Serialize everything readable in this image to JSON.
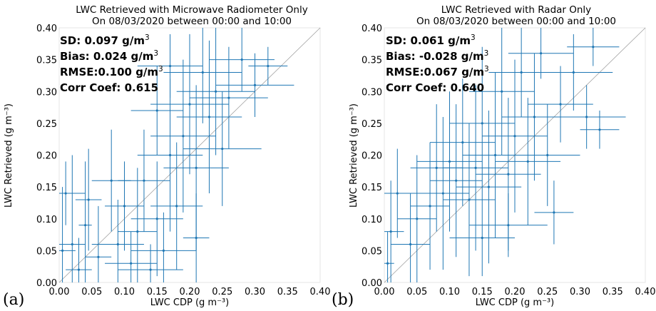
{
  "chart_data": [
    {
      "type": "scatter",
      "panel_label": "(a)",
      "title": "LWC Retrieved with Microwave Radiometer Only",
      "subtitle": "On 08/03/2020 between 00:00 and 10:00",
      "xlabel": "LWC CDP (g m⁻³)",
      "ylabel": "LWC Retrieved (g m⁻³)",
      "xlim": [
        0,
        0.4
      ],
      "ylim": [
        0,
        0.4
      ],
      "x_ticks": [
        "0.00",
        "0.05",
        "0.10",
        "0.15",
        "0.20",
        "0.25",
        "0.30",
        "0.35",
        "0.40"
      ],
      "y_ticks": [
        "0.00",
        "0.05",
        "0.10",
        "0.15",
        "0.20",
        "0.25",
        "0.30",
        "0.35",
        "0.40"
      ],
      "reference_line": "1:1",
      "stats": [
        {
          "label": "SD: 0.097 g/m",
          "sup": "3"
        },
        {
          "label": "Bias: 0.024 g/m",
          "sup": "3"
        },
        {
          "label": "RMSE:0.100 g/m",
          "sup": "3"
        },
        {
          "label": "Corr Coef: 0.615",
          "sup": ""
        }
      ],
      "points": [
        {
          "x": 0.005,
          "y": 0.05,
          "xerr": 0.02,
          "yerr": 0.1
        },
        {
          "x": 0.01,
          "y": 0.14,
          "xerr": 0.03,
          "yerr": 0.05
        },
        {
          "x": 0.02,
          "y": 0.06,
          "xerr": 0.02,
          "yerr": 0.14
        },
        {
          "x": 0.03,
          "y": 0.02,
          "xerr": 0.02,
          "yerr": 0.05
        },
        {
          "x": 0.04,
          "y": 0.09,
          "xerr": 0.01,
          "yerr": 0.1
        },
        {
          "x": 0.045,
          "y": 0.13,
          "xerr": 0.02,
          "yerr": 0.08
        },
        {
          "x": 0.06,
          "y": 0.04,
          "xerr": 0.02,
          "yerr": 0.08
        },
        {
          "x": 0.08,
          "y": 0.16,
          "xerr": 0.03,
          "yerr": 0.08
        },
        {
          "x": 0.09,
          "y": 0.06,
          "xerr": 0.04,
          "yerr": 0.07
        },
        {
          "x": 0.1,
          "y": 0.12,
          "xerr": 0.03,
          "yerr": 0.07
        },
        {
          "x": 0.11,
          "y": 0.03,
          "xerr": 0.04,
          "yerr": 0.05
        },
        {
          "x": 0.12,
          "y": 0.08,
          "xerr": 0.03,
          "yerr": 0.1
        },
        {
          "x": 0.13,
          "y": 0.16,
          "xerr": 0.04,
          "yerr": 0.08
        },
        {
          "x": 0.14,
          "y": 0.02,
          "xerr": 0.05,
          "yerr": 0.04
        },
        {
          "x": 0.15,
          "y": 0.1,
          "xerr": 0.04,
          "yerr": 0.09
        },
        {
          "x": 0.16,
          "y": 0.05,
          "xerr": 0.05,
          "yerr": 0.06
        },
        {
          "x": 0.17,
          "y": 0.2,
          "xerr": 0.05,
          "yerr": 0.12
        },
        {
          "x": 0.18,
          "y": 0.12,
          "xerr": 0.04,
          "yerr": 0.1
        },
        {
          "x": 0.19,
          "y": 0.23,
          "xerr": 0.05,
          "yerr": 0.12
        },
        {
          "x": 0.2,
          "y": 0.28,
          "xerr": 0.06,
          "yerr": 0.11
        },
        {
          "x": 0.21,
          "y": 0.18,
          "xerr": 0.05,
          "yerr": 0.13
        },
        {
          "x": 0.22,
          "y": 0.33,
          "xerr": 0.06,
          "yerr": 0.08
        },
        {
          "x": 0.23,
          "y": 0.26,
          "xerr": 0.05,
          "yerr": 0.12
        },
        {
          "x": 0.24,
          "y": 0.3,
          "xerr": 0.06,
          "yerr": 0.1
        },
        {
          "x": 0.26,
          "y": 0.29,
          "xerr": 0.06,
          "yerr": 0.08
        },
        {
          "x": 0.28,
          "y": 0.35,
          "xerr": 0.05,
          "yerr": 0.05
        },
        {
          "x": 0.3,
          "y": 0.31,
          "xerr": 0.06,
          "yerr": 0.05
        },
        {
          "x": 0.32,
          "y": 0.34,
          "xerr": 0.03,
          "yerr": 0.03
        },
        {
          "x": 0.25,
          "y": 0.21,
          "xerr": 0.06,
          "yerr": 0.09
        },
        {
          "x": 0.15,
          "y": 0.27,
          "xerr": 0.04,
          "yerr": 0.07
        },
        {
          "x": 0.17,
          "y": 0.34,
          "xerr": 0.05,
          "yerr": 0.05
        },
        {
          "x": 0.21,
          "y": 0.07,
          "xerr": 0.02,
          "yerr": 0.07
        }
      ]
    },
    {
      "type": "scatter",
      "panel_label": "(b)",
      "title": "LWC Retrieved with Radar Only",
      "subtitle": "On 08/03/2020 between 00:00 and 10:00",
      "xlabel": "LWC CDP (g m⁻³)",
      "ylabel": "LWC Retrieved (g m⁻³)",
      "xlim": [
        0,
        0.4
      ],
      "ylim": [
        0,
        0.4
      ],
      "x_ticks": [
        "0.00",
        "0.05",
        "0.10",
        "0.15",
        "0.20",
        "0.25",
        "0.30",
        "0.35",
        "0.40"
      ],
      "y_ticks": [
        "0.00",
        "0.05",
        "0.10",
        "0.15",
        "0.20",
        "0.25",
        "0.30",
        "0.35",
        "0.40"
      ],
      "reference_line": "1:1",
      "stats": [
        {
          "label": "SD: 0.061 g/m",
          "sup": "3"
        },
        {
          "label": "Bias: -0.028 g/m",
          "sup": "3"
        },
        {
          "label": "RMSE:0.067 g/m",
          "sup": "3"
        },
        {
          "label": "Corr Coef: 0.640",
          "sup": ""
        }
      ],
      "points": [
        {
          "x": 0.005,
          "y": 0.03,
          "xerr": 0.01,
          "yerr": 0.05
        },
        {
          "x": 0.01,
          "y": 0.08,
          "xerr": 0.02,
          "yerr": 0.08
        },
        {
          "x": 0.02,
          "y": 0.14,
          "xerr": 0.03,
          "yerr": 0.07
        },
        {
          "x": 0.04,
          "y": 0.06,
          "xerr": 0.03,
          "yerr": 0.08
        },
        {
          "x": 0.05,
          "y": 0.1,
          "xerr": 0.03,
          "yerr": 0.1
        },
        {
          "x": 0.07,
          "y": 0.12,
          "xerr": 0.03,
          "yerr": 0.1
        },
        {
          "x": 0.08,
          "y": 0.18,
          "xerr": 0.04,
          "yerr": 0.1
        },
        {
          "x": 0.09,
          "y": 0.14,
          "xerr": 0.04,
          "yerr": 0.12
        },
        {
          "x": 0.1,
          "y": 0.19,
          "xerr": 0.05,
          "yerr": 0.11
        },
        {
          "x": 0.11,
          "y": 0.16,
          "xerr": 0.04,
          "yerr": 0.12
        },
        {
          "x": 0.12,
          "y": 0.22,
          "xerr": 0.05,
          "yerr": 0.1
        },
        {
          "x": 0.13,
          "y": 0.13,
          "xerr": 0.04,
          "yerr": 0.12
        },
        {
          "x": 0.14,
          "y": 0.18,
          "xerr": 0.05,
          "yerr": 0.13
        },
        {
          "x": 0.15,
          "y": 0.25,
          "xerr": 0.05,
          "yerr": 0.12
        },
        {
          "x": 0.16,
          "y": 0.15,
          "xerr": 0.05,
          "yerr": 0.12
        },
        {
          "x": 0.17,
          "y": 0.2,
          "xerr": 0.05,
          "yerr": 0.13
        },
        {
          "x": 0.18,
          "y": 0.3,
          "xerr": 0.05,
          "yerr": 0.1
        },
        {
          "x": 0.19,
          "y": 0.17,
          "xerr": 0.05,
          "yerr": 0.12
        },
        {
          "x": 0.2,
          "y": 0.23,
          "xerr": 0.05,
          "yerr": 0.12
        },
        {
          "x": 0.21,
          "y": 0.33,
          "xerr": 0.05,
          "yerr": 0.07
        },
        {
          "x": 0.22,
          "y": 0.19,
          "xerr": 0.05,
          "yerr": 0.1
        },
        {
          "x": 0.23,
          "y": 0.26,
          "xerr": 0.05,
          "yerr": 0.1
        },
        {
          "x": 0.24,
          "y": 0.36,
          "xerr": 0.05,
          "yerr": 0.04
        },
        {
          "x": 0.25,
          "y": 0.2,
          "xerr": 0.05,
          "yerr": 0.08
        },
        {
          "x": 0.27,
          "y": 0.28,
          "xerr": 0.05,
          "yerr": 0.06
        },
        {
          "x": 0.29,
          "y": 0.33,
          "xerr": 0.06,
          "yerr": 0.06
        },
        {
          "x": 0.31,
          "y": 0.26,
          "xerr": 0.06,
          "yerr": 0.05
        },
        {
          "x": 0.32,
          "y": 0.37,
          "xerr": 0.04,
          "yerr": 0.03
        },
        {
          "x": 0.33,
          "y": 0.24,
          "xerr": 0.03,
          "yerr": 0.03
        },
        {
          "x": 0.19,
          "y": 0.09,
          "xerr": 0.06,
          "yerr": 0.05
        },
        {
          "x": 0.15,
          "y": 0.07,
          "xerr": 0.05,
          "yerr": 0.06
        },
        {
          "x": 0.26,
          "y": 0.11,
          "xerr": 0.03,
          "yerr": 0.05
        }
      ]
    }
  ]
}
